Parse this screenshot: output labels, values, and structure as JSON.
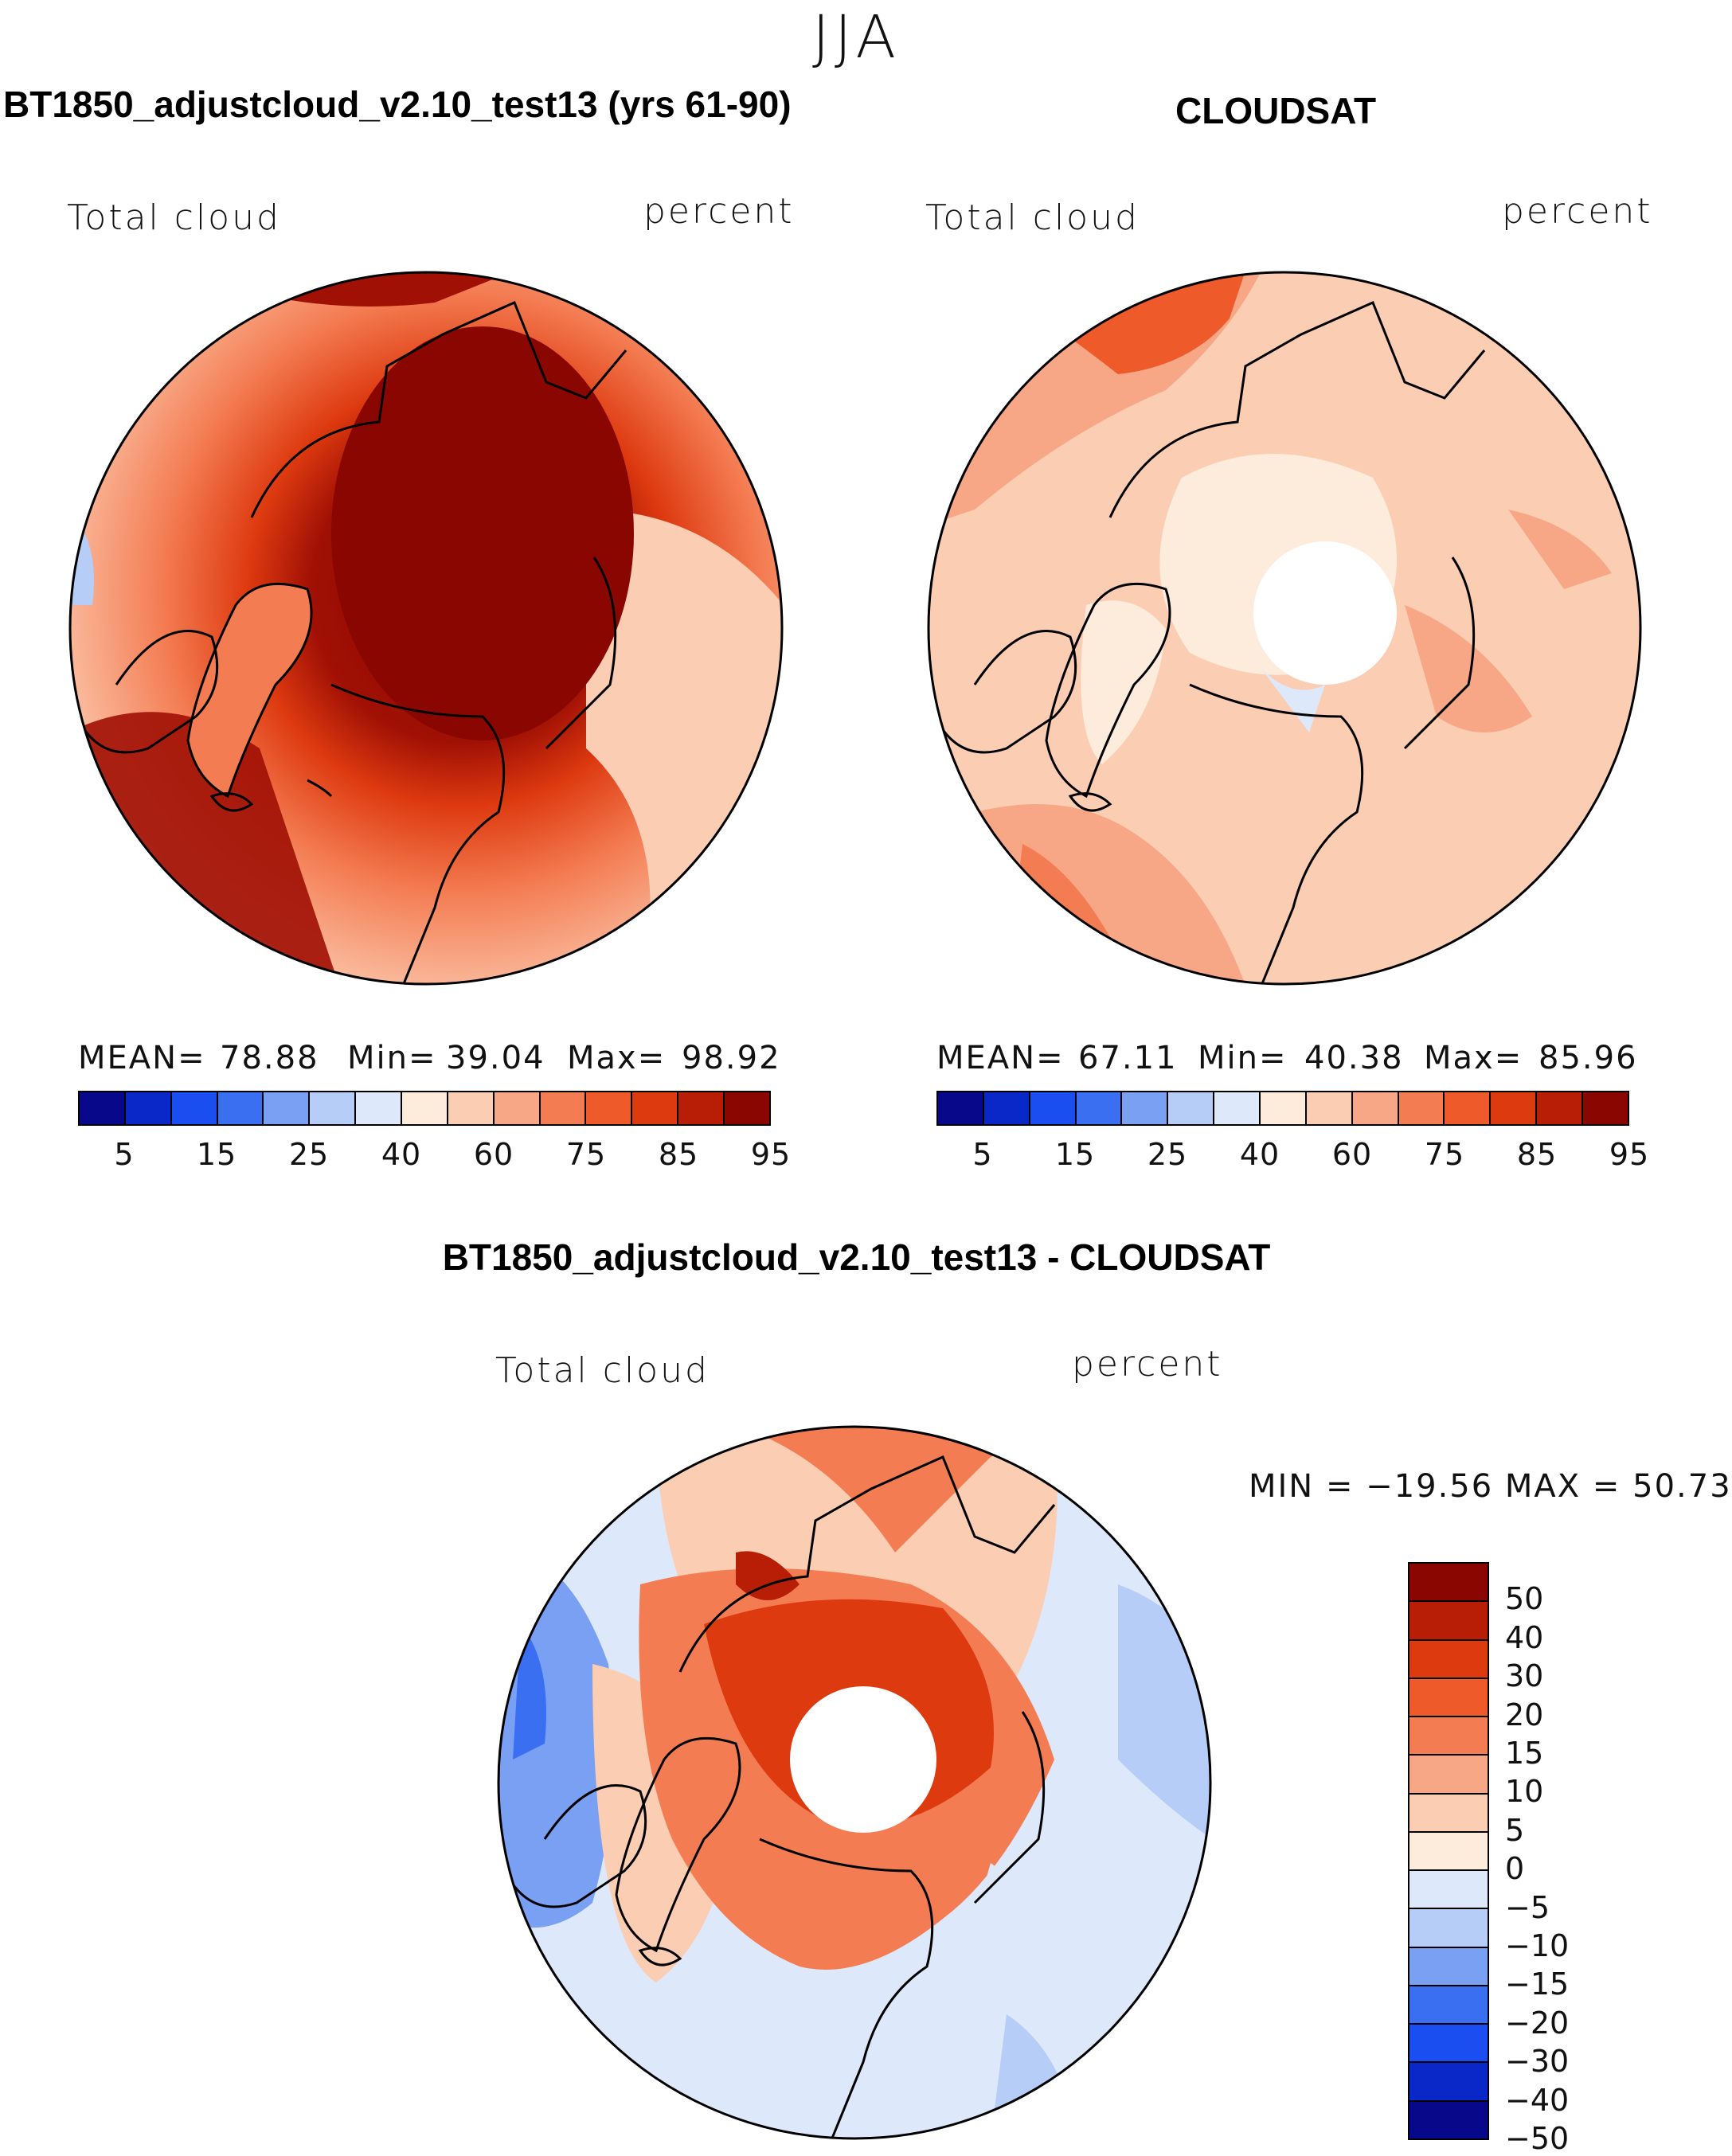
{
  "season": "JJA",
  "panels": {
    "model": {
      "title": "BT1850_adjustcloud_v2.10_test13 (yrs 61-90)",
      "variable": "Total cloud",
      "units": "percent",
      "mean_label": "MEAN=",
      "mean": "78.88",
      "min_label": "Min=",
      "min": "39.04",
      "max_label": "Max=",
      "max": "98.92"
    },
    "obs": {
      "title": "CLOUDSAT",
      "variable": "Total cloud",
      "units": "percent",
      "mean_label": "MEAN=",
      "mean": "67.11",
      "min_label": "Min=",
      "min": "40.38",
      "max_label": "Max=",
      "max": "85.96"
    },
    "diff": {
      "title": "BT1850_adjustcloud_v2.10_test13 - CLOUDSAT",
      "variable": "Total cloud",
      "units": "percent",
      "minmax_text": "MIN = −19.56 MAX =   50.73"
    }
  },
  "colorbar_top": {
    "tick_labels": [
      "5",
      "15",
      "25",
      "40",
      "60",
      "75",
      "85",
      "95"
    ],
    "colors": [
      "#08088a",
      "#0a28c8",
      "#1a4ef0",
      "#3a6ff2",
      "#7aa0f4",
      "#b6cdf7",
      "#dde9fb",
      "#fdebdc",
      "#fbcdb3",
      "#f7a785",
      "#f47c52",
      "#ee5a2a",
      "#de3a10",
      "#b81e06",
      "#8a0600"
    ]
  },
  "colorbar_diff": {
    "tick_labels": [
      "50",
      "40",
      "30",
      "20",
      "15",
      "10",
      "5",
      "0",
      "−5",
      "−10",
      "−15",
      "−20",
      "−30",
      "−40",
      "−50"
    ],
    "colors": [
      "#8a0600",
      "#b81e06",
      "#de3a10",
      "#ee5a2a",
      "#f47c52",
      "#f7a785",
      "#fbcdb3",
      "#fdebdc",
      "#dde9fb",
      "#b6cdf7",
      "#7aa0f4",
      "#3a6ff2",
      "#1a4ef0",
      "#0a28c8",
      "#08088a"
    ]
  },
  "chart_data": [
    {
      "type": "heatmap",
      "title": "BT1850_adjustcloud_v2.10_test13 (yrs 61-90)",
      "variable": "Total cloud",
      "units": "percent",
      "projection": "north polar stereographic",
      "mean": 78.88,
      "min": 39.04,
      "max": 98.92,
      "levels": [
        5,
        15,
        25,
        40,
        60,
        75,
        85,
        95
      ]
    },
    {
      "type": "heatmap",
      "title": "CLOUDSAT",
      "variable": "Total cloud",
      "units": "percent",
      "projection": "north polar stereographic",
      "mean": 67.11,
      "min": 40.38,
      "max": 85.96,
      "levels": [
        5,
        15,
        25,
        40,
        60,
        75,
        85,
        95
      ]
    },
    {
      "type": "heatmap",
      "title": "BT1850_adjustcloud_v2.10_test13 - CLOUDSAT",
      "variable": "Total cloud",
      "units": "percent",
      "projection": "north polar stereographic",
      "min": -19.56,
      "max": 50.73,
      "levels": [
        -50,
        -40,
        -30,
        -20,
        -15,
        -10,
        -5,
        0,
        5,
        10,
        15,
        20,
        30,
        40,
        50
      ]
    }
  ]
}
